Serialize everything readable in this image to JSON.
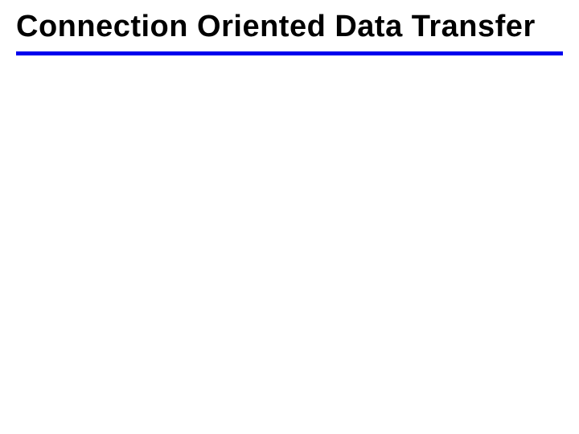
{
  "slide": {
    "title": "Connection Oriented Data Transfer",
    "title_fontsize": 38,
    "title_color": "#000000",
    "title_weight": 900,
    "divider_color": "#0000ee",
    "divider_height": 5,
    "background_color": "#ffffff"
  }
}
